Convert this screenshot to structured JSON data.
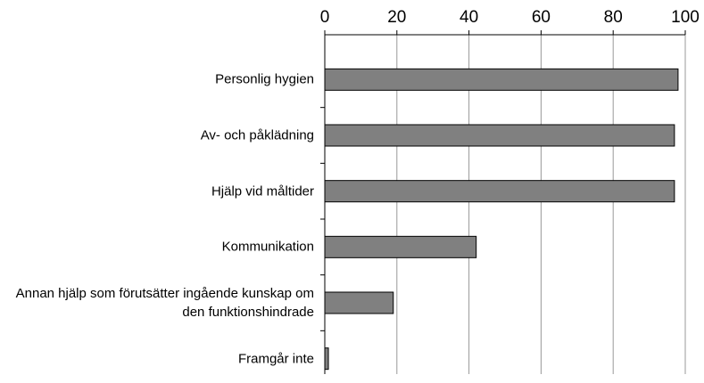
{
  "chart_data": {
    "type": "bar",
    "orientation": "horizontal",
    "categories": [
      "Personlig hygien",
      "Av- och påklädning",
      "Hjälp vid måltider",
      "Kommunikation",
      "Annan hjälp som förutsätter ingående kunskap om den funktionshindrade",
      "Framgår inte"
    ],
    "values": [
      98,
      97,
      97,
      42,
      19,
      1
    ],
    "color": "#808080",
    "xlim": [
      0,
      100
    ],
    "xticks": [
      0,
      20,
      40,
      60,
      80,
      100
    ],
    "grid": true
  }
}
